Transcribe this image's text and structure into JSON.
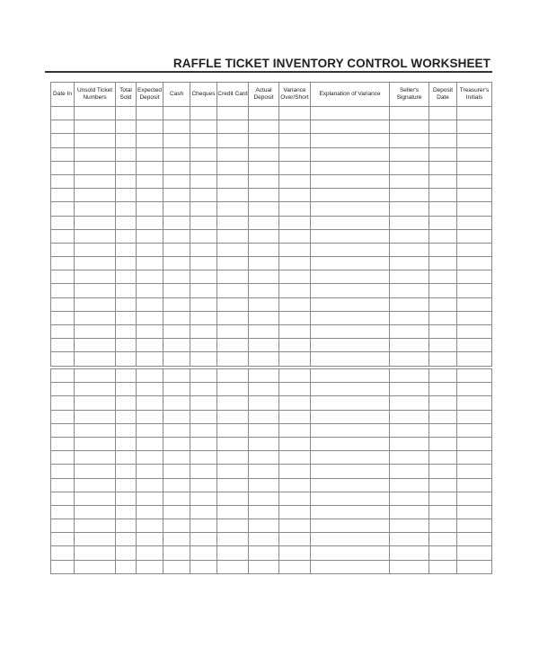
{
  "title": "RAFFLE TICKET INVENTORY CONTROL WORKSHEET",
  "columns": [
    "Date In",
    "Unsold Ticket Numbers",
    "Total Sold",
    "Expected Deposit",
    "Cash",
    "Cheques",
    "Credit Card",
    "Actual Deposit",
    "Variance Over/Short",
    "Explanation of Variance",
    "Seller's Signature",
    "Deposit Date",
    "Treasurer's Initials"
  ],
  "sections": [
    {
      "rows": 19
    },
    {
      "rows": 15
    }
  ]
}
